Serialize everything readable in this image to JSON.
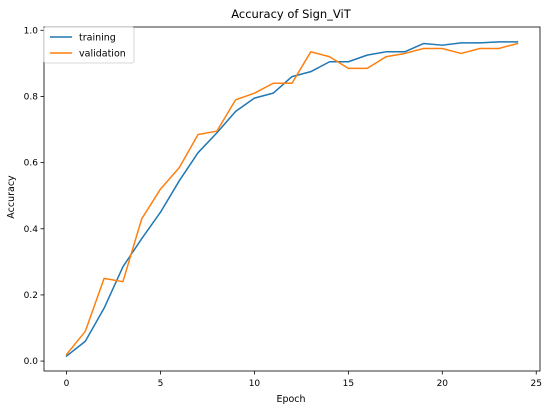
{
  "chart_data": {
    "type": "line",
    "title": "Accuracy of Sign_ViT",
    "xlabel": "Epoch",
    "ylabel": "Accuracy",
    "xlim": [
      -1.2,
      25.2
    ],
    "ylim": [
      -0.03,
      1.01
    ],
    "xticks": [
      0,
      5,
      10,
      15,
      20,
      25
    ],
    "yticks": [
      0.0,
      0.2,
      0.4,
      0.6,
      0.8,
      1.0
    ],
    "xtick_labels": [
      "0",
      "5",
      "10",
      "15",
      "20",
      "25"
    ],
    "ytick_labels": [
      "0.0",
      "0.2",
      "0.4",
      "0.6",
      "0.8",
      "1.0"
    ],
    "grid": false,
    "legend_position": "top-left",
    "x": [
      0,
      1,
      2,
      3,
      4,
      5,
      6,
      7,
      8,
      9,
      10,
      11,
      12,
      13,
      14,
      15,
      16,
      17,
      18,
      19,
      20,
      21,
      22,
      23,
      24
    ],
    "series": [
      {
        "name": "training",
        "color": "#1f77b4",
        "values": [
          0.015,
          0.06,
          0.16,
          0.285,
          0.37,
          0.45,
          0.545,
          0.63,
          0.69,
          0.755,
          0.795,
          0.81,
          0.86,
          0.875,
          0.905,
          0.905,
          0.925,
          0.935,
          0.935,
          0.96,
          0.955,
          0.962,
          0.962,
          0.965,
          0.965
        ]
      },
      {
        "name": "validation",
        "color": "#ff7f0e",
        "values": [
          0.02,
          0.09,
          0.25,
          0.24,
          0.43,
          0.52,
          0.585,
          0.685,
          0.695,
          0.79,
          0.81,
          0.84,
          0.84,
          0.935,
          0.92,
          0.885,
          0.885,
          0.92,
          0.93,
          0.945,
          0.945,
          0.93,
          0.945,
          0.945,
          0.96
        ]
      }
    ]
  }
}
